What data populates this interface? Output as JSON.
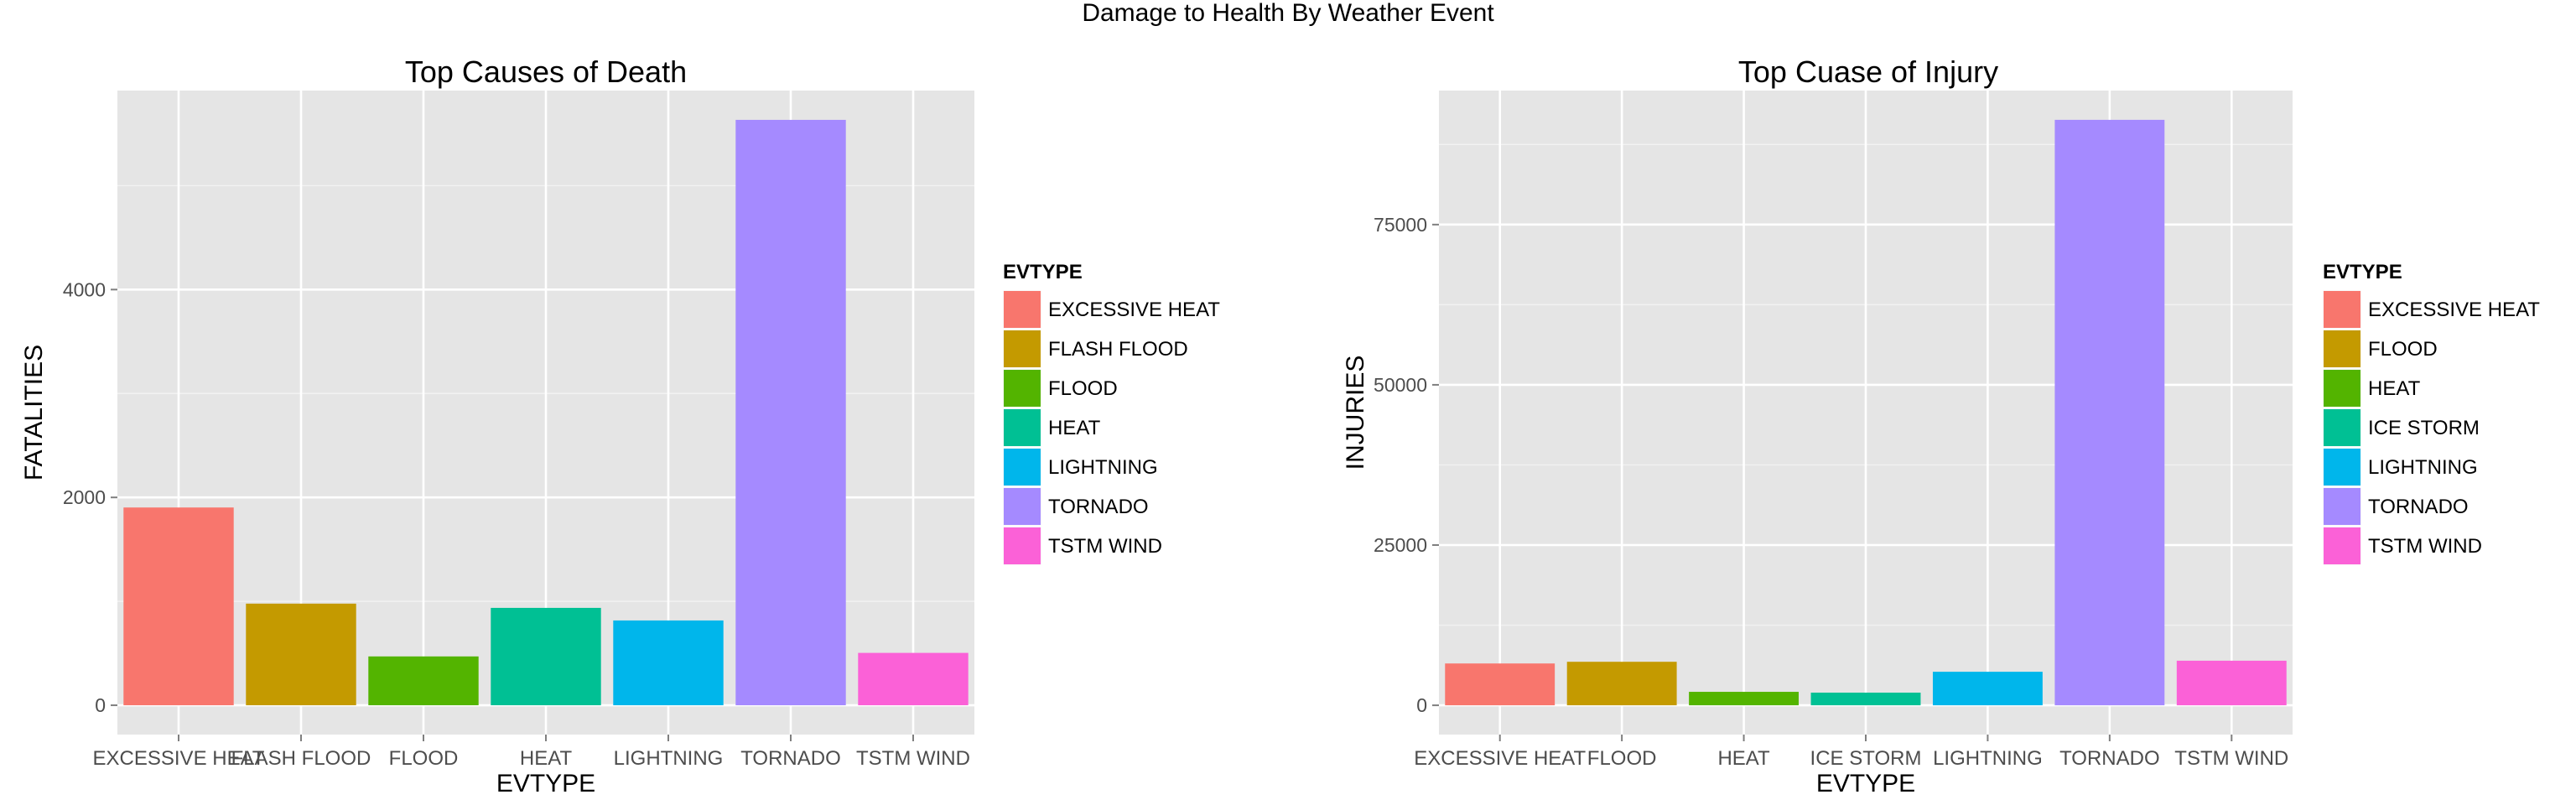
{
  "figure": {
    "title": "Damage to Health By Weather Event"
  },
  "chart_data": [
    {
      "type": "bar",
      "title": "Top Causes of Death",
      "xlabel": "EVTYPE",
      "ylabel": "FATALITIES",
      "categories": [
        "EXCESSIVE HEAT",
        "FLASH FLOOD",
        "FLOOD",
        "HEAT",
        "LIGHTNING",
        "TORNADO",
        "TSTM WIND"
      ],
      "values": [
        1903,
        978,
        470,
        937,
        816,
        5633,
        504
      ],
      "colors": [
        "#F8766D",
        "#C49A00",
        "#53B400",
        "#00C094",
        "#00B6EB",
        "#A58AFF",
        "#FB61D7"
      ],
      "ylim": [
        -282,
        5915
      ],
      "yticks": [
        0,
        2000,
        4000
      ],
      "ytick_labels": [
        "0",
        "2000",
        "4000"
      ],
      "yminor": [
        1000,
        3000,
        5000
      ],
      "grid": true,
      "legend": {
        "title": "EVTYPE",
        "position": "right",
        "entries": [
          "EXCESSIVE HEAT",
          "FLASH FLOOD",
          "FLOOD",
          "HEAT",
          "LIGHTNING",
          "TORNADO",
          "TSTM WIND"
        ]
      }
    },
    {
      "type": "bar",
      "title": "Top Cuase of Injury",
      "xlabel": "EVTYPE",
      "ylabel": "INJURIES",
      "categories": [
        "EXCESSIVE HEAT",
        "FLOOD",
        "HEAT",
        "ICE STORM",
        "LIGHTNING",
        "TORNADO",
        "TSTM WIND"
      ],
      "values": [
        6525,
        6789,
        2100,
        1975,
        5230,
        91346,
        6957
      ],
      "colors": [
        "#F8766D",
        "#C49A00",
        "#53B400",
        "#00C094",
        "#00B6EB",
        "#A58AFF",
        "#FB61D7"
      ],
      "ylim": [
        -4567,
        95913
      ],
      "yticks": [
        0,
        25000,
        50000,
        75000
      ],
      "ytick_labels": [
        "0",
        "25000",
        "50000",
        "75000"
      ],
      "yminor": [
        12500,
        37500,
        62500,
        87500
      ],
      "grid": true,
      "legend": {
        "title": "EVTYPE",
        "position": "right",
        "entries": [
          "EXCESSIVE HEAT",
          "FLOOD",
          "HEAT",
          "ICE STORM",
          "LIGHTNING",
          "TORNADO",
          "TSTM WIND"
        ]
      }
    }
  ]
}
